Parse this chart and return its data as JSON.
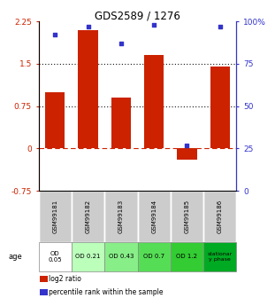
{
  "title": "GDS2589 / 1276",
  "samples": [
    "GSM99181",
    "GSM99182",
    "GSM99183",
    "GSM99184",
    "GSM99185",
    "GSM99186"
  ],
  "log2_ratios": [
    1.0,
    2.1,
    0.9,
    1.65,
    -0.2,
    1.45
  ],
  "percentile_ranks": [
    92,
    97,
    87,
    98,
    27,
    97
  ],
  "bar_color": "#cc2200",
  "dot_color": "#3333cc",
  "ylim_left": [
    -0.75,
    2.25
  ],
  "ylim_right": [
    0,
    100
  ],
  "yticks_left": [
    -0.75,
    0,
    0.75,
    1.5,
    2.25
  ],
  "yticks_right": [
    0,
    25,
    50,
    75,
    100
  ],
  "hlines": [
    0,
    0.75,
    1.5
  ],
  "hline_styles": [
    "dashed",
    "dotted",
    "dotted"
  ],
  "hline_colors": [
    "#cc2200",
    "#111111",
    "#111111"
  ],
  "age_labels": [
    "OD\n0.05",
    "OD 0.21",
    "OD 0.43",
    "OD 0.7",
    "OD 1.2",
    "stationar\ny phase"
  ],
  "age_bg_colors": [
    "#ffffff",
    "#ccffcc",
    "#99ee99",
    "#66dd66",
    "#33cc33",
    "#00bb00"
  ],
  "sample_bg_color": "#cccccc",
  "legend_items": [
    {
      "color": "#cc2200",
      "label": "log2 ratio"
    },
    {
      "color": "#3333cc",
      "label": "percentile rank within the sample"
    }
  ]
}
